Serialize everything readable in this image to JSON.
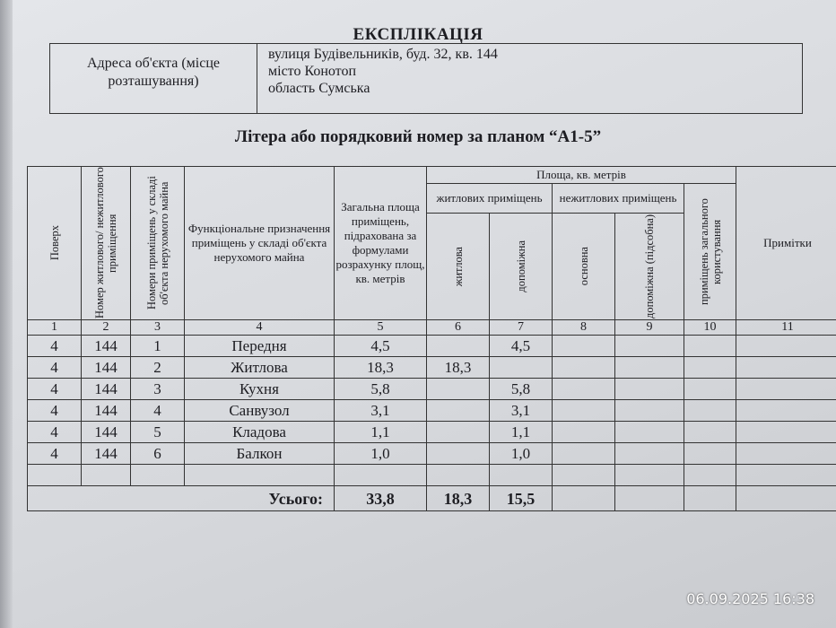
{
  "title": "ЕКСПЛІКАЦІЯ",
  "address": {
    "label": "Адреса об'єкта (місце розташування)",
    "lines": [
      "вулиця  Будівельників, буд. 32, кв. 144",
      "місто  Конотоп",
      "область  Сумська"
    ]
  },
  "subtitle": "Літера або порядковий номер за планом “А1-5”",
  "headers": {
    "floor": "Поверх",
    "unit_no": "Номер житлового/ нежитлового приміщення",
    "room_no": "Номери приміщень у складі об'єкта нерухомого майна",
    "purpose": "Функціональне призначення приміщень у складі об'єкта нерухомого майна",
    "total": "Загальна площа приміщень, підрахована за формулами розрахунку площ, кв. метрів",
    "area": "Площа, кв. метрів",
    "residential": "житлових приміщень",
    "nonresidential": "нежитлових приміщень",
    "living": "житлова",
    "aux": "допоміжна",
    "main": "основна",
    "aux_util": "допоміжна (підсобна)",
    "common": "приміщень загального користування",
    "notes": "Примітки"
  },
  "column_numbers": [
    "1",
    "2",
    "3",
    "4",
    "5",
    "6",
    "7",
    "8",
    "9",
    "10",
    "11"
  ],
  "rows": [
    [
      "4",
      "144",
      "1",
      "Передня",
      "4,5",
      "",
      "4,5",
      "",
      "",
      "",
      ""
    ],
    [
      "4",
      "144",
      "2",
      "Житлова",
      "18,3",
      "18,3",
      "",
      "",
      "",
      "",
      ""
    ],
    [
      "4",
      "144",
      "3",
      "Кухня",
      "5,8",
      "",
      "5,8",
      "",
      "",
      "",
      ""
    ],
    [
      "4",
      "144",
      "4",
      "Санвузол",
      "3,1",
      "",
      "3,1",
      "",
      "",
      "",
      ""
    ],
    [
      "4",
      "144",
      "5",
      "Кладова",
      "1,1",
      "",
      "1,1",
      "",
      "",
      "",
      ""
    ],
    [
      "4",
      "144",
      "6",
      "Балкон",
      "1,0",
      "",
      "1,0",
      "",
      "",
      "",
      ""
    ],
    [
      "",
      "",
      "",
      "",
      "",
      "",
      "",
      "",
      "",
      "",
      ""
    ]
  ],
  "totals": {
    "label": "Усього:",
    "total": "33,8",
    "living": "18,3",
    "aux": "15,5"
  },
  "timestamp": "06.09.2025  16:38"
}
